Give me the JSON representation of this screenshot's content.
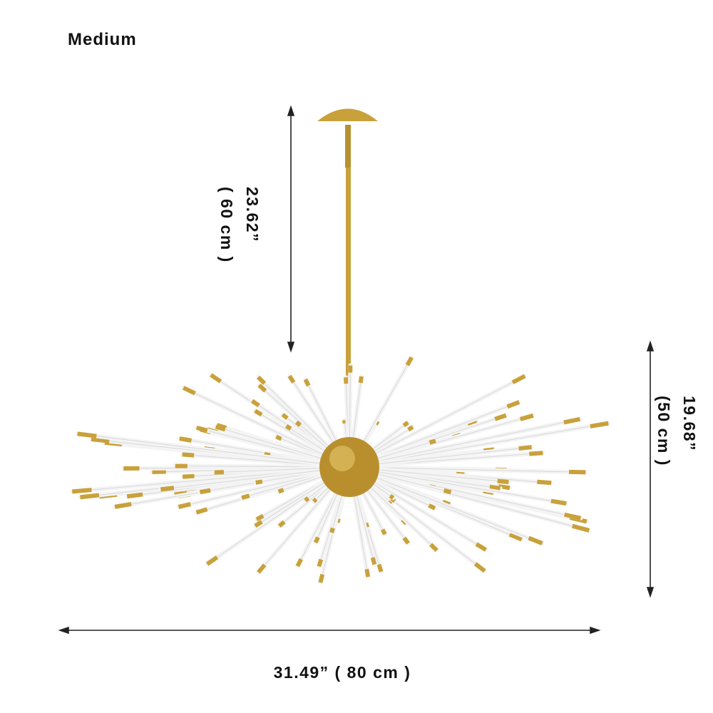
{
  "title": "Medium",
  "dimensions": {
    "drop": {
      "inches": "23.62”",
      "cm": "( 60 cm )"
    },
    "height": {
      "inches": "19.68”",
      "cm": "(50 cm )"
    },
    "width": {
      "label": "31.49” ( 80 cm )"
    }
  },
  "colors": {
    "gold": "#c9a13b",
    "rod": "#f4f4f4",
    "arrow": "#222222"
  }
}
